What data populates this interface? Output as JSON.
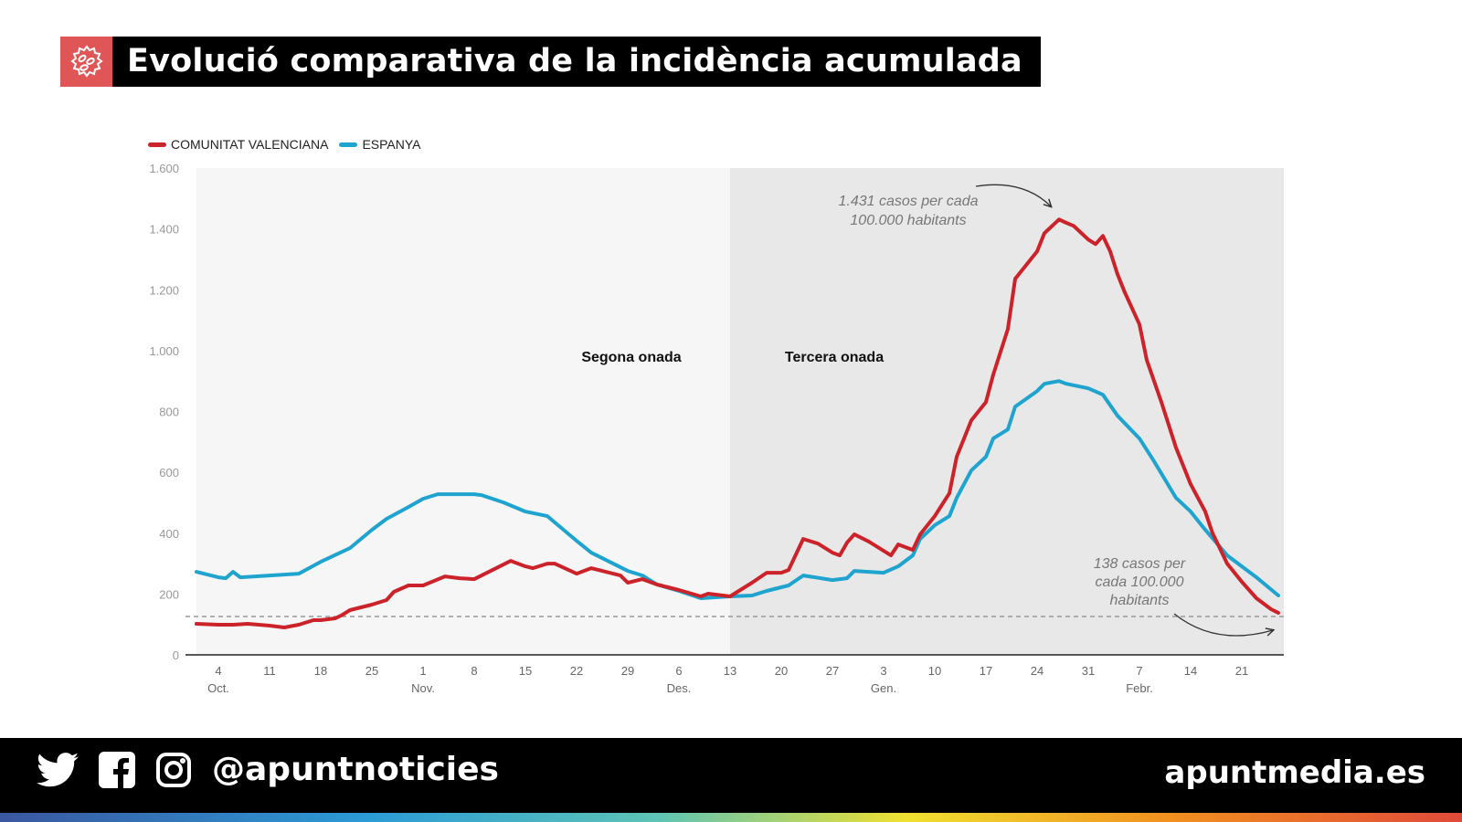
{
  "header": {
    "title": "Evolució comparativa de la incidència acumulada",
    "icon": "virus-icon",
    "icon_bg": "#e05555"
  },
  "footer": {
    "handle": "@apuntnoticies",
    "site": "apuntmedia.es",
    "icons": [
      "twitter-icon",
      "facebook-icon",
      "instagram-icon"
    ]
  },
  "chart_data": {
    "type": "line",
    "title": "Evolució comparativa de la incidència acumulada",
    "legend_position": "top-left",
    "ylim": [
      0,
      1600
    ],
    "xlim": [
      "2020-10-01",
      "2021-02-26"
    ],
    "grid": false,
    "y_ticks": [
      {
        "v": 0,
        "label": "0"
      },
      {
        "v": 200,
        "label": "200"
      },
      {
        "v": 400,
        "label": "400"
      },
      {
        "v": 600,
        "label": "600"
      },
      {
        "v": 800,
        "label": "800"
      },
      {
        "v": 1000,
        "label": "1.000"
      },
      {
        "v": 1200,
        "label": "1.200"
      },
      {
        "v": 1400,
        "label": "1.400"
      },
      {
        "v": 1600,
        "label": "1.600"
      }
    ],
    "x_ticks": [
      {
        "date": "2020-10-04",
        "label": "4",
        "month": "Oct."
      },
      {
        "date": "2020-10-11",
        "label": "11"
      },
      {
        "date": "2020-10-18",
        "label": "18"
      },
      {
        "date": "2020-10-25",
        "label": "25"
      },
      {
        "date": "2020-11-01",
        "label": "1",
        "month": "Nov."
      },
      {
        "date": "2020-11-08",
        "label": "8"
      },
      {
        "date": "2020-11-15",
        "label": "15"
      },
      {
        "date": "2020-11-22",
        "label": "22"
      },
      {
        "date": "2020-11-29",
        "label": "29"
      },
      {
        "date": "2020-12-06",
        "label": "6",
        "month": "Des."
      },
      {
        "date": "2020-12-13",
        "label": "13"
      },
      {
        "date": "2020-12-20",
        "label": "20"
      },
      {
        "date": "2020-12-27",
        "label": "27"
      },
      {
        "date": "2021-01-03",
        "label": "3",
        "month": "Gen."
      },
      {
        "date": "2021-01-10",
        "label": "10"
      },
      {
        "date": "2021-01-17",
        "label": "17"
      },
      {
        "date": "2021-01-24",
        "label": "24"
      },
      {
        "date": "2021-01-31",
        "label": "31"
      },
      {
        "date": "2021-02-07",
        "label": "7",
        "month": "Febr."
      },
      {
        "date": "2021-02-14",
        "label": "14"
      },
      {
        "date": "2021-02-21",
        "label": "21"
      }
    ],
    "periods": [
      {
        "label": "Segona onada",
        "start": "2020-10-01",
        "end": "2020-12-13",
        "color": "#f6f6f6"
      },
      {
        "label": "Tercera onada",
        "start": "2020-12-13",
        "end": "2021-02-27",
        "color": "#e8e8e8"
      }
    ],
    "reference_line": {
      "value": 126,
      "color": "#999999"
    },
    "annotations": [
      {
        "lines": [
          "1.431 casos per cada",
          "100.000 habitants"
        ],
        "date": "2021-01-27",
        "value": 1431
      },
      {
        "lines": [
          "138 casos per",
          "cada 100.000",
          "habitants"
        ],
        "date": "2021-02-26",
        "value": 138
      }
    ],
    "series": [
      {
        "name": "COMUNITAT VALENCIANA",
        "color": "#cc2229",
        "points": [
          [
            "2020-10-01",
            102
          ],
          [
            "2020-10-04",
            99
          ],
          [
            "2020-10-06",
            99
          ],
          [
            "2020-10-08",
            102
          ],
          [
            "2020-10-11",
            96
          ],
          [
            "2020-10-13",
            90
          ],
          [
            "2020-10-15",
            99
          ],
          [
            "2020-10-17",
            114
          ],
          [
            "2020-10-18",
            114
          ],
          [
            "2020-10-20",
            120
          ],
          [
            "2020-10-21",
            132
          ],
          [
            "2020-10-22",
            147
          ],
          [
            "2020-10-25",
            165
          ],
          [
            "2020-10-27",
            180
          ],
          [
            "2020-10-28",
            207
          ],
          [
            "2020-10-30",
            228
          ],
          [
            "2020-11-01",
            228
          ],
          [
            "2020-11-04",
            258
          ],
          [
            "2020-11-06",
            252
          ],
          [
            "2020-11-08",
            249
          ],
          [
            "2020-11-09",
            261
          ],
          [
            "2020-11-11",
            285
          ],
          [
            "2020-11-13",
            309
          ],
          [
            "2020-11-15",
            291
          ],
          [
            "2020-11-16",
            285
          ],
          [
            "2020-11-18",
            300
          ],
          [
            "2020-11-19",
            300
          ],
          [
            "2020-11-22",
            267
          ],
          [
            "2020-11-24",
            285
          ],
          [
            "2020-11-26",
            273
          ],
          [
            "2020-11-28",
            261
          ],
          [
            "2020-11-29",
            237
          ],
          [
            "2020-12-01",
            249
          ],
          [
            "2020-12-03",
            231
          ],
          [
            "2020-12-06",
            213
          ],
          [
            "2020-12-09",
            192
          ],
          [
            "2020-12-10",
            201
          ],
          [
            "2020-12-13",
            192
          ],
          [
            "2020-12-14",
            207
          ],
          [
            "2020-12-16",
            237
          ],
          [
            "2020-12-18",
            270
          ],
          [
            "2020-12-20",
            270
          ],
          [
            "2020-12-21",
            279
          ],
          [
            "2020-12-23",
            381
          ],
          [
            "2020-12-25",
            366
          ],
          [
            "2020-12-27",
            336
          ],
          [
            "2020-12-28",
            327
          ],
          [
            "2020-12-29",
            369
          ],
          [
            "2020-12-30",
            396
          ],
          [
            "2021-01-01",
            372
          ],
          [
            "2021-01-03",
            342
          ],
          [
            "2021-01-04",
            327
          ],
          [
            "2021-01-05",
            363
          ],
          [
            "2021-01-07",
            345
          ],
          [
            "2021-01-08",
            396
          ],
          [
            "2021-01-10",
            456
          ],
          [
            "2021-01-12",
            531
          ],
          [
            "2021-01-13",
            651
          ],
          [
            "2021-01-15",
            771
          ],
          [
            "2021-01-17",
            831
          ],
          [
            "2021-01-18",
            921
          ],
          [
            "2021-01-20",
            1071
          ],
          [
            "2021-01-21",
            1236
          ],
          [
            "2021-01-24",
            1326
          ],
          [
            "2021-01-25",
            1386
          ],
          [
            "2021-01-27",
            1431
          ],
          [
            "2021-01-28",
            1420
          ],
          [
            "2021-01-29",
            1410
          ],
          [
            "2021-01-31",
            1365
          ],
          [
            "2021-02-01",
            1350
          ],
          [
            "2021-02-02",
            1377
          ],
          [
            "2021-02-03",
            1326
          ],
          [
            "2021-02-04",
            1251
          ],
          [
            "2021-02-05",
            1191
          ],
          [
            "2021-02-07",
            1086
          ],
          [
            "2021-02-08",
            969
          ],
          [
            "2021-02-10",
            831
          ],
          [
            "2021-02-12",
            681
          ],
          [
            "2021-02-14",
            561
          ],
          [
            "2021-02-16",
            471
          ],
          [
            "2021-02-17",
            400
          ],
          [
            "2021-02-19",
            300
          ],
          [
            "2021-02-21",
            240
          ],
          [
            "2021-02-23",
            186
          ],
          [
            "2021-02-25",
            150
          ],
          [
            "2021-02-26",
            138
          ]
        ]
      },
      {
        "name": "ESPANYA",
        "color": "#1fa3cf",
        "points": [
          [
            "2020-10-01",
            273
          ],
          [
            "2020-10-04",
            255
          ],
          [
            "2020-10-05",
            252
          ],
          [
            "2020-10-06",
            273
          ],
          [
            "2020-10-07",
            255
          ],
          [
            "2020-10-11",
            261
          ],
          [
            "2020-10-15",
            267
          ],
          [
            "2020-10-18",
            306
          ],
          [
            "2020-10-22",
            351
          ],
          [
            "2020-10-25",
            411
          ],
          [
            "2020-10-27",
            447
          ],
          [
            "2020-10-30",
            486
          ],
          [
            "2020-11-01",
            513
          ],
          [
            "2020-11-03",
            528
          ],
          [
            "2020-11-04",
            528
          ],
          [
            "2020-11-08",
            528
          ],
          [
            "2020-11-09",
            525
          ],
          [
            "2020-11-12",
            501
          ],
          [
            "2020-11-15",
            471
          ],
          [
            "2020-11-18",
            456
          ],
          [
            "2020-11-22",
            375
          ],
          [
            "2020-11-24",
            336
          ],
          [
            "2020-11-27",
            300
          ],
          [
            "2020-11-29",
            276
          ],
          [
            "2020-12-01",
            261
          ],
          [
            "2020-12-03",
            231
          ],
          [
            "2020-12-06",
            210
          ],
          [
            "2020-12-09",
            186
          ],
          [
            "2020-12-13",
            192
          ],
          [
            "2020-12-16",
            195
          ],
          [
            "2020-12-18",
            210
          ],
          [
            "2020-12-21",
            228
          ],
          [
            "2020-12-23",
            261
          ],
          [
            "2020-12-27",
            246
          ],
          [
            "2020-12-29",
            252
          ],
          [
            "2020-12-30",
            276
          ],
          [
            "2021-01-03",
            270
          ],
          [
            "2021-01-05",
            291
          ],
          [
            "2021-01-07",
            327
          ],
          [
            "2021-01-08",
            381
          ],
          [
            "2021-01-10",
            426
          ],
          [
            "2021-01-12",
            456
          ],
          [
            "2021-01-13",
            516
          ],
          [
            "2021-01-15",
            606
          ],
          [
            "2021-01-17",
            651
          ],
          [
            "2021-01-18",
            711
          ],
          [
            "2021-01-20",
            741
          ],
          [
            "2021-01-21",
            816
          ],
          [
            "2021-01-24",
            867
          ],
          [
            "2021-01-25",
            891
          ],
          [
            "2021-01-27",
            900
          ],
          [
            "2021-01-28",
            891
          ],
          [
            "2021-01-31",
            876
          ],
          [
            "2021-02-02",
            855
          ],
          [
            "2021-02-04",
            786
          ],
          [
            "2021-02-07",
            711
          ],
          [
            "2021-02-09",
            636
          ],
          [
            "2021-02-12",
            516
          ],
          [
            "2021-02-14",
            471
          ],
          [
            "2021-02-16",
            411
          ],
          [
            "2021-02-19",
            327
          ],
          [
            "2021-02-21",
            291
          ],
          [
            "2021-02-23",
            255
          ],
          [
            "2021-02-26",
            195
          ]
        ]
      }
    ]
  }
}
